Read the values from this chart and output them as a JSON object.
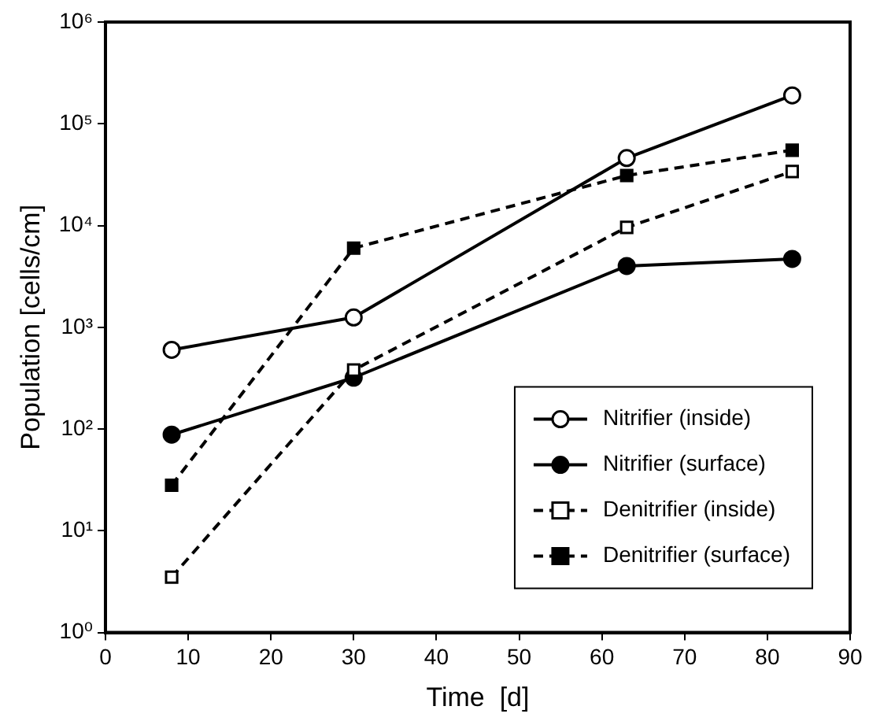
{
  "chart_data": {
    "type": "line",
    "xlabel": "Time  [d]",
    "ylabel": "Population [cells/cm]",
    "x": [
      8,
      30,
      63,
      83
    ],
    "series": [
      {
        "name": "Nitrifier (inside)",
        "color": "#000000",
        "marker": "circle",
        "colors": [
          "#ffffff",
          "#ffffff",
          "#ffffff",
          "#ffffff"
        ],
        "line_style": "solid",
        "values": [
          600,
          1250,
          46000,
          190000
        ]
      },
      {
        "name": "Nitrifier (surface)",
        "color": "#000000",
        "marker": "circle",
        "colors": [
          "#000000",
          "#000000",
          "#000000",
          "#000000"
        ],
        "line_style": "solid",
        "values": [
          88,
          320,
          4000,
          4700
        ]
      },
      {
        "name": "Denitrifier (inside)",
        "color": "#000000",
        "marker": "square",
        "colors": [
          "#ffffff",
          "#ffffff",
          "#ffffff",
          "#ffffff"
        ],
        "line_style": "dashed",
        "values": [
          3.5,
          380,
          9600,
          34000
        ]
      },
      {
        "name": "Denitrifier (surface)",
        "color": "#000000",
        "marker": "square",
        "colors": [
          "#000000",
          "#000000",
          "#000000",
          "#000000"
        ],
        "line_style": "dashed",
        "values": [
          28,
          6000,
          31000,
          55000
        ]
      }
    ],
    "log": "y",
    "xlim": [
      0,
      90
    ],
    "xticks": [
      0,
      10,
      20,
      30,
      40,
      50,
      60,
      70,
      80,
      90
    ],
    "ylim": [
      1,
      1000000
    ],
    "yticks": [
      {
        "value": 1,
        "label": "10⁰"
      },
      {
        "value": 10,
        "label": "10¹"
      },
      {
        "value": 100,
        "label": "10²"
      },
      {
        "value": 1000,
        "label": "10³"
      },
      {
        "value": 10000,
        "label": "10⁴"
      },
      {
        "value": 100000,
        "label": "10⁵"
      },
      {
        "value": 1000000,
        "label": "10⁶"
      }
    ],
    "grid": false,
    "legend": "bottom right"
  }
}
